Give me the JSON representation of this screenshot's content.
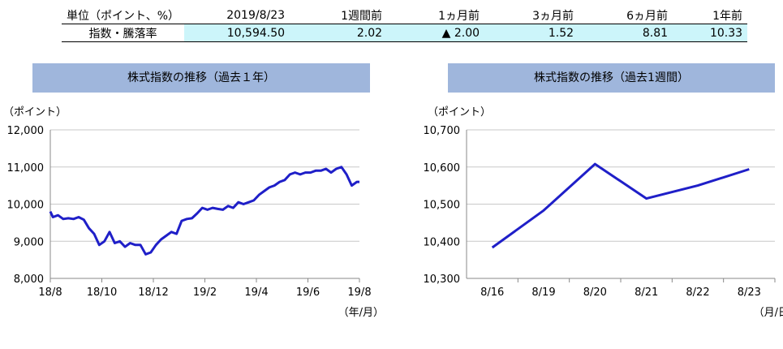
{
  "table": {
    "header": [
      "単位（ポイント、%）",
      "2019/8/23",
      "1週間前",
      "1ヵ月前",
      "3ヵ月前",
      "6ヵ月前",
      "1年前"
    ],
    "row_label": "指数・騰落率",
    "values": [
      "10,594.50",
      "2.02",
      "▲ 2.00",
      "1.52",
      "8.81",
      "10.33"
    ]
  },
  "chart_data": [
    {
      "type": "line",
      "title": "株式指数の推移（過去１年）",
      "ylabel": "（ポイント）",
      "xlabel": "（年/月）",
      "x_ticks": [
        "18/8",
        "18/10",
        "18/12",
        "19/2",
        "19/4",
        "19/6",
        "19/8"
      ],
      "y_ticks": [
        "8,000",
        "9,000",
        "10,000",
        "11,000",
        "12,000"
      ],
      "ylim": [
        8000,
        12000
      ],
      "grid": true,
      "color": "#1f1fc8",
      "series": [
        {
          "x": [
            0.0,
            0.05,
            0.15,
            0.25,
            0.35,
            0.45,
            0.55,
            0.65,
            0.75,
            0.85,
            0.95,
            1.05,
            1.15,
            1.25,
            1.35,
            1.45,
            1.55,
            1.65,
            1.75,
            1.85,
            1.95,
            2.05,
            2.15,
            2.25,
            2.35,
            2.45,
            2.55,
            2.65,
            2.75,
            2.85,
            2.95,
            3.05,
            3.15,
            3.25,
            3.35,
            3.45,
            3.55,
            3.65,
            3.75,
            3.85,
            3.95,
            4.05,
            4.15,
            4.25,
            4.35,
            4.45,
            4.55,
            4.65,
            4.75,
            4.85,
            4.95,
            5.05,
            5.15,
            5.25,
            5.35,
            5.45,
            5.55,
            5.65,
            5.75,
            5.85,
            5.95,
            6.0
          ],
          "values": [
            9800,
            9650,
            9700,
            9600,
            9620,
            9600,
            9650,
            9580,
            9350,
            9200,
            8900,
            9000,
            9250,
            8950,
            9000,
            8850,
            8950,
            8900,
            8900,
            8650,
            8700,
            8900,
            9050,
            9150,
            9250,
            9200,
            9550,
            9600,
            9620,
            9750,
            9900,
            9850,
            9900,
            9870,
            9850,
            9950,
            9900,
            10050,
            10000,
            10050,
            10100,
            10250,
            10350,
            10450,
            10500,
            10600,
            10650,
            10800,
            10850,
            10800,
            10850,
            10850,
            10900,
            10900,
            10950,
            10850,
            10950,
            11000,
            10800,
            10500,
            10600,
            10600
          ]
        }
      ]
    },
    {
      "type": "line",
      "title": "株式指数の推移（過去1週間）",
      "ylabel": "（ポイント）",
      "xlabel": "（月/日）",
      "categories": [
        "8/16",
        "8/19",
        "8/20",
        "8/21",
        "8/22",
        "8/23"
      ],
      "y_ticks": [
        "10,300",
        "10,400",
        "10,500",
        "10,600",
        "10,700"
      ],
      "ylim": [
        10300,
        10700
      ],
      "grid": true,
      "color": "#1f1fc8",
      "series": [
        {
          "values": [
            10383,
            10483,
            10608,
            10515,
            10550,
            10594
          ]
        }
      ]
    }
  ]
}
